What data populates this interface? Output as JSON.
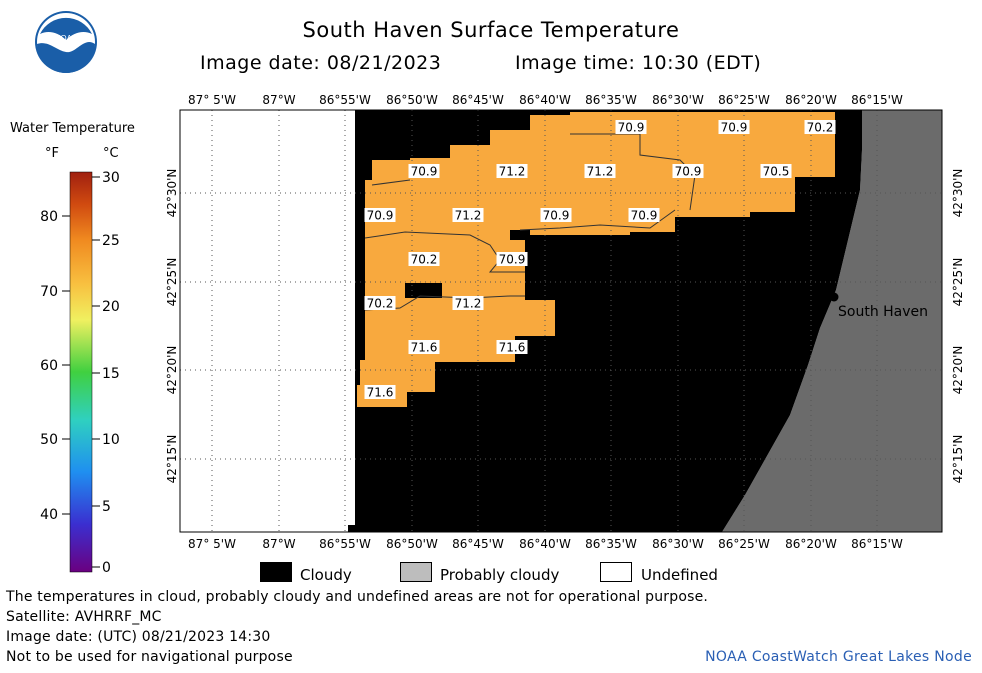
{
  "header": {
    "title": "South Haven Surface Temperature",
    "image_date": "Image date: 08/21/2023",
    "image_time": "Image time: 10:30 (EDT)"
  },
  "logo": {
    "icon": "noaa-logo",
    "text": "NOAA"
  },
  "legend": {
    "title": "Water Temperature",
    "unit_f": "°F",
    "unit_c": "°C",
    "fahrenheit_ticks": [
      "40",
      "50",
      "60",
      "70",
      "80"
    ],
    "celsius_ticks": [
      "0",
      "5",
      "10",
      "15",
      "20",
      "25",
      "30"
    ],
    "colors": [
      "#6a0080",
      "#3a2fd0",
      "#1f8ff0",
      "#2fd0c0",
      "#40d040",
      "#f0f060",
      "#f8c040",
      "#f08a20",
      "#d04a10",
      "#a02010"
    ]
  },
  "map": {
    "longitude_labels": [
      "87° 5'W",
      "87°W",
      "86°55'W",
      "86°50'W",
      "86°45'W",
      "86°40'W",
      "86°35'W",
      "86°30'W",
      "86°25'W",
      "86°20'W",
      "86°15'W"
    ],
    "latitude_labels": [
      "42°30'N",
      "42°25'N",
      "42°20'N",
      "42°15'N"
    ],
    "city": "South Haven",
    "temperatures": [
      "70.9",
      "70.9",
      "70.2",
      "70.9",
      "71.2",
      "71.2",
      "70.9",
      "70.5",
      "70.9",
      "71.2",
      "70.9",
      "70.9",
      "70.2",
      "70.9",
      "70.2",
      "71.2",
      "71.6",
      "71.6",
      "71.6"
    ],
    "colors": {
      "water": "#f8a93e",
      "cloud": "#000000",
      "land": "#6b6b6b",
      "undefined": "#ffffff"
    }
  },
  "key": {
    "cloudy": "Cloudy",
    "probably_cloudy": "Probably cloudy",
    "undefined": "Undefined"
  },
  "notes": {
    "disclaimer": "The temperatures in cloud, probably cloudy and undefined areas are not for operational purpose.",
    "satellite": "Satellite: AVHRRF_MC",
    "utc_date": "Image date: (UTC) 08/21/2023  14:30",
    "nav": "Not to be used for navigational purpose",
    "credit": "NOAA CoastWatch Great Lakes Node"
  }
}
